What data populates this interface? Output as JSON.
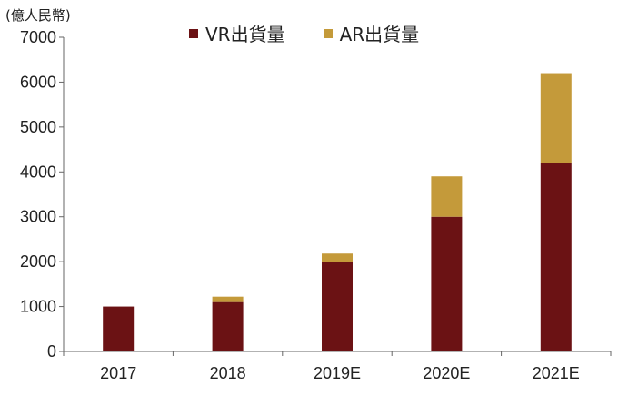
{
  "chart_data": {
    "type": "bar",
    "stacked": true,
    "unit_label": "(億人民幣)",
    "categories": [
      "2017",
      "2018",
      "2019E",
      "2020E",
      "2021E"
    ],
    "series": [
      {
        "name": "VR出貨量",
        "color": "#6b1214",
        "values": [
          1000,
          1100,
          2000,
          3000,
          4200
        ]
      },
      {
        "name": "AR出貨量",
        "color": "#c49a3a",
        "values": [
          0,
          120,
          180,
          900,
          2000
        ]
      }
    ],
    "ylim": [
      0,
      7000
    ],
    "yticks": [
      0,
      1000,
      2000,
      3000,
      4000,
      5000,
      6000,
      7000
    ],
    "grid": false,
    "legend": "top"
  }
}
